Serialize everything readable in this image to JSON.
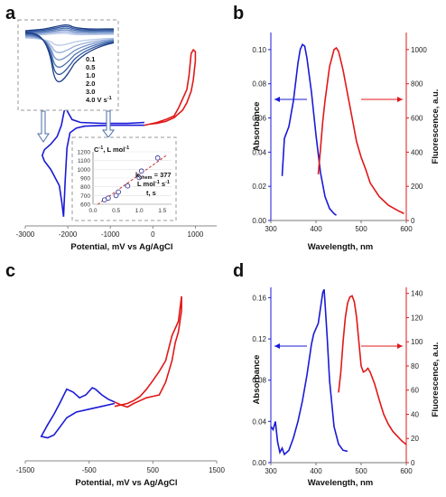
{
  "panels": {
    "a": {
      "letter": "a",
      "xlabel": "Potential, mV vs Ag/AgCl",
      "xticks": [
        "-3000",
        "-2000",
        "-1000",
        "0",
        "1000"
      ],
      "inset_scan_rates": {
        "labels": [
          "0.1",
          "0.5",
          "1.0",
          "2.0",
          "3.0",
          "4.0 V s"
        ],
        "superscript": "-1"
      },
      "inset_fit": {
        "ylabel_prefix": "C",
        "ylabel_sup": "-1",
        "ylabel_suffix": ", L mol",
        "ylabel_sup2": "-1",
        "xlabel": "t, s",
        "yticks": [
          "600",
          "700",
          "800",
          "900",
          "1000",
          "1100",
          "1200"
        ],
        "xticks": [
          "0.0",
          "0.5",
          "1.0",
          "1.5"
        ],
        "k_label": "k",
        "k_sub": "chem",
        "k_value": " = 377",
        "k_units": "L mol",
        "k_units_sup1": "-1",
        "k_units_mid": " s",
        "k_units_sup2": "-1"
      }
    },
    "b": {
      "letter": "b",
      "xlabel": "Wavelength, nm",
      "ylabel_left": "Absorbance",
      "ylabel_right": "Fluorescence, a.u.",
      "xticks": [
        "300",
        "400",
        "500",
        "600"
      ],
      "yticks_left": [
        "0.00",
        "0.02",
        "0.04",
        "0.06",
        "0.08",
        "0.10"
      ],
      "yticks_right": [
        "0",
        "200",
        "400",
        "600",
        "800",
        "1000"
      ]
    },
    "c": {
      "letter": "c",
      "xlabel": "Potential, mV vs Ag/AgCl",
      "xticks": [
        "-1500",
        "-500",
        "500",
        "1500"
      ]
    },
    "d": {
      "letter": "d",
      "xlabel": "Wavelength, nm",
      "ylabel_left": "Absorbance",
      "ylabel_right": "Fluorescence, a.u.",
      "xticks": [
        "300",
        "400",
        "500",
        "600"
      ],
      "yticks_left": [
        "0.00",
        "0.04",
        "0.08",
        "0.12",
        "0.16"
      ],
      "yticks_right": [
        "0",
        "20",
        "40",
        "60",
        "80",
        "100",
        "120",
        "140"
      ]
    }
  },
  "colors": {
    "blue": "#1a1ad6",
    "red": "#e01818",
    "inset_line": "#1f3d8a",
    "fit_line": "#c03030"
  },
  "chart_data": [
    {
      "type": "line",
      "panel": "a",
      "xlabel": "Potential, mV vs Ag/AgCl",
      "xlim": [
        -3000,
        1500
      ],
      "series": [
        {
          "color": "#1a1ad6",
          "x": [
            -200,
            -1000,
            -1600,
            -1800,
            -1950,
            -2020,
            -2060,
            -2100,
            -2140,
            -2200,
            -2400,
            -2550,
            -2600,
            -2550,
            -2400,
            -2250,
            -2150,
            -2080,
            -2050,
            -2000,
            -1900,
            -1700,
            -1200,
            -600,
            -200
          ],
          "y": [
            0.02,
            0.02,
            0.01,
            -0.01,
            -0.06,
            -0.22,
            -0.55,
            -0.95,
            -0.8,
            -0.62,
            -0.45,
            -0.36,
            -0.3,
            -0.24,
            -0.18,
            -0.1,
            0.02,
            0.18,
            0.2,
            0.16,
            0.08,
            0.05,
            0.04,
            0.04,
            0.05
          ]
        },
        {
          "color": "#e01818",
          "x": [
            -200,
            100,
            300,
            500,
            600,
            700,
            800,
            850,
            900,
            950,
            1000,
            1000,
            950,
            900,
            800,
            700,
            500,
            300,
            100,
            -100
          ],
          "y": [
            0.02,
            0.05,
            0.08,
            0.12,
            0.2,
            0.3,
            0.4,
            0.55,
            0.78,
            0.82,
            0.8,
            0.7,
            0.5,
            0.38,
            0.26,
            0.18,
            0.1,
            0.06,
            0.04,
            0.03
          ]
        }
      ]
    },
    {
      "type": "scatter",
      "panel": "a-inset",
      "xlabel": "t, s",
      "x": [
        0.25,
        0.33,
        0.5,
        0.55,
        0.75,
        1.0,
        1.05,
        1.4
      ],
      "y": [
        650,
        670,
        700,
        740,
        810,
        905,
        980,
        1130
      ],
      "fit": {
        "slope": 377,
        "intercept": 560
      },
      "xlim": [
        0,
        1.7
      ],
      "ylim": [
        600,
        1200
      ]
    },
    {
      "type": "line",
      "panel": "b",
      "xlabel": "Wavelength, nm",
      "ylabel": "Absorbance",
      "y2label": "Fluorescence, a.u.",
      "xlim": [
        300,
        600
      ],
      "ylim": [
        0,
        0.11
      ],
      "y2lim": [
        0,
        1100
      ],
      "series": [
        {
          "axis": "left",
          "color": "#1a1ad6",
          "x": [
            325,
            330,
            340,
            350,
            360,
            365,
            370,
            375,
            380,
            390,
            400,
            410,
            420,
            430,
            440,
            445
          ],
          "y": [
            0.026,
            0.048,
            0.055,
            0.07,
            0.092,
            0.1,
            0.103,
            0.102,
            0.095,
            0.075,
            0.05,
            0.028,
            0.014,
            0.007,
            0.004,
            0.003
          ]
        },
        {
          "axis": "right",
          "color": "#e01818",
          "x": [
            405,
            410,
            415,
            420,
            430,
            440,
            445,
            450,
            460,
            470,
            480,
            490,
            500,
            510,
            520,
            540,
            560,
            580,
            595
          ],
          "y": [
            270,
            420,
            580,
            700,
            900,
            1000,
            1010,
            990,
            880,
            740,
            600,
            460,
            370,
            300,
            220,
            140,
            90,
            60,
            40
          ]
        }
      ]
    },
    {
      "type": "line",
      "panel": "c",
      "xlabel": "Potential, mV vs Ag/AgCl",
      "xlim": [
        -1500,
        1500
      ],
      "series": [
        {
          "color": "#1a1ad6",
          "x": [
            -100,
            -300,
            -500,
            -700,
            -850,
            -950,
            -1050,
            -1150,
            -1250,
            -1150,
            -1050,
            -950,
            -850,
            -750,
            -650,
            -550,
            -450,
            -400,
            -300,
            -200,
            -100
          ],
          "y": [
            0.1,
            0.06,
            0.02,
            -0.02,
            -0.1,
            -0.22,
            -0.34,
            -0.38,
            -0.36,
            -0.2,
            -0.05,
            0.12,
            0.3,
            0.26,
            0.18,
            0.22,
            0.32,
            0.3,
            0.22,
            0.16,
            0.12
          ]
        },
        {
          "color": "#e01818",
          "x": [
            -100,
            0,
            100,
            200,
            300,
            400,
            500,
            600,
            700,
            800,
            850,
            900,
            950,
            950,
            900,
            800,
            700,
            600,
            500,
            400,
            300,
            200,
            100,
            0,
            -100
          ],
          "y": [
            0.06,
            0.08,
            0.05,
            0.1,
            0.14,
            0.18,
            0.2,
            0.22,
            0.4,
            0.7,
            0.95,
            1.1,
            1.4,
            1.6,
            1.25,
            1.05,
            0.7,
            0.55,
            0.42,
            0.3,
            0.2,
            0.14,
            0.1,
            0.08,
            0.12
          ]
        }
      ]
    },
    {
      "type": "line",
      "panel": "d",
      "xlabel": "Wavelength, nm",
      "ylabel": "Absorbance",
      "y2label": "Fluorescence, a.u.",
      "xlim": [
        300,
        600
      ],
      "ylim": [
        0,
        0.17
      ],
      "y2lim": [
        0,
        145
      ],
      "series": [
        {
          "axis": "left",
          "color": "#1a1ad6",
          "x": [
            300,
            305,
            310,
            315,
            320,
            325,
            330,
            335,
            340,
            350,
            360,
            370,
            380,
            390,
            395,
            400,
            405,
            410,
            415,
            418,
            420,
            425,
            430,
            440,
            450,
            460,
            470
          ],
          "y": [
            0.035,
            0.032,
            0.04,
            0.02,
            0.01,
            0.014,
            0.008,
            0.01,
            0.012,
            0.024,
            0.04,
            0.06,
            0.085,
            0.115,
            0.125,
            0.13,
            0.135,
            0.15,
            0.165,
            0.168,
            0.155,
            0.12,
            0.08,
            0.035,
            0.018,
            0.012,
            0.011
          ]
        },
        {
          "axis": "right",
          "color": "#e01818",
          "x": [
            450,
            455,
            460,
            465,
            470,
            475,
            480,
            485,
            490,
            495,
            500,
            505,
            510,
            515,
            520,
            530,
            540,
            550,
            560,
            570,
            580,
            590,
            600
          ],
          "y": [
            58,
            75,
            100,
            120,
            132,
            137,
            138,
            133,
            120,
            100,
            80,
            75,
            76,
            78,
            75,
            65,
            52,
            40,
            32,
            26,
            22,
            18,
            15
          ]
        }
      ]
    }
  ]
}
